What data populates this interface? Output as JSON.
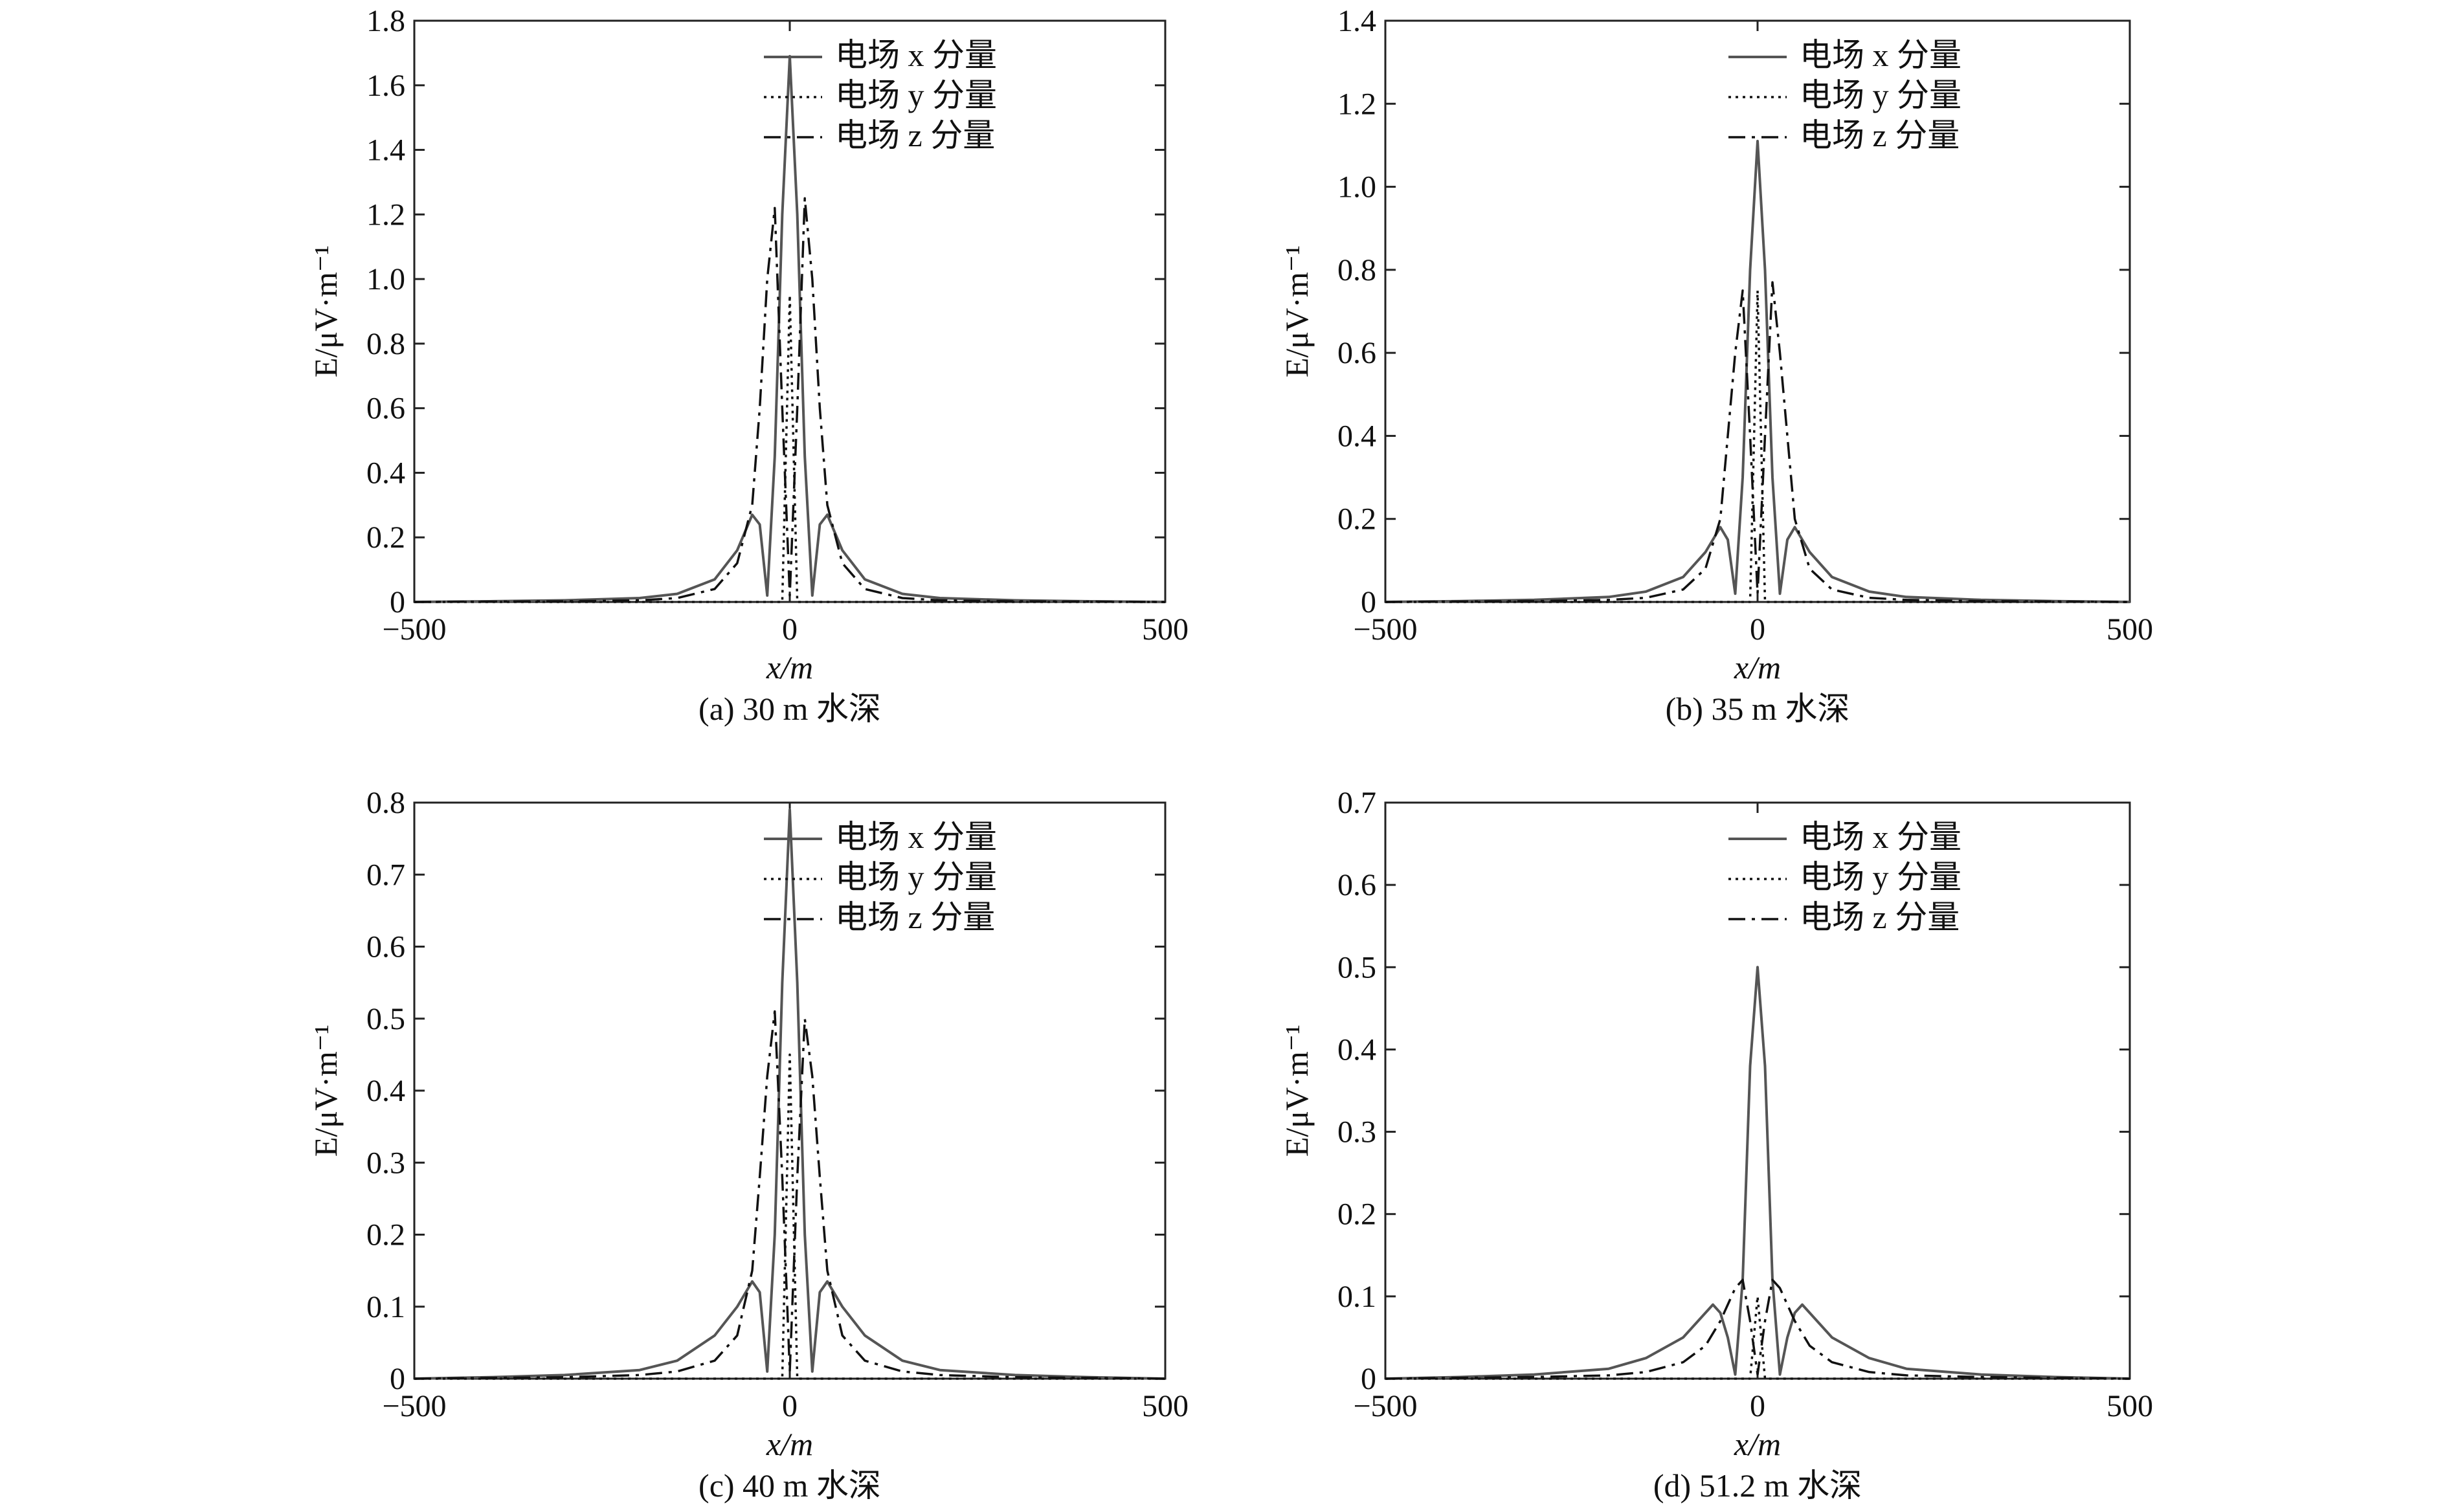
{
  "chart_data": [
    {
      "id": "a",
      "type": "line",
      "caption": "(a) 30 m 水深",
      "xlabel": "x/m",
      "ylabel": "E/μV·m⁻¹",
      "xlim": [
        -500,
        500
      ],
      "ylim": [
        0,
        1.8
      ],
      "xticks": [
        "−500",
        "0",
        "500"
      ],
      "yticks": [
        "0",
        "0.2",
        "0.4",
        "0.6",
        "0.8",
        "1.0",
        "1.2",
        "1.4",
        "1.6",
        "1.8"
      ],
      "legend_position": "top-right",
      "series": [
        {
          "name": "电场 x 分量",
          "style": "solid",
          "color": "#555555",
          "x": [
            -500,
            -400,
            -300,
            -200,
            -150,
            -100,
            -70,
            -50,
            -40,
            -30,
            -20,
            -10,
            0,
            10,
            20,
            30,
            40,
            50,
            70,
            100,
            150,
            200,
            300,
            400,
            500
          ],
          "y": [
            0,
            0.002,
            0.005,
            0.012,
            0.025,
            0.07,
            0.16,
            0.27,
            0.24,
            0.02,
            0.45,
            1.2,
            1.69,
            1.2,
            0.45,
            0.02,
            0.24,
            0.27,
            0.16,
            0.07,
            0.025,
            0.012,
            0.005,
            0.002,
            0
          ]
        },
        {
          "name": "电场 y 分量",
          "style": "dotted",
          "color": "#111111",
          "x": [
            -500,
            -10,
            0,
            10,
            500
          ],
          "y": [
            0,
            0,
            0.95,
            0,
            0
          ]
        },
        {
          "name": "电场 z 分量",
          "style": "dashdot",
          "color": "#111111",
          "x": [
            -500,
            -300,
            -200,
            -150,
            -100,
            -70,
            -50,
            -40,
            -30,
            -20,
            -10,
            0,
            10,
            20,
            30,
            40,
            50,
            70,
            100,
            150,
            200,
            300,
            500
          ],
          "y": [
            0,
            0.002,
            0.005,
            0.012,
            0.04,
            0.12,
            0.3,
            0.6,
            1.0,
            1.22,
            0.6,
            0.02,
            0.6,
            1.25,
            1.0,
            0.6,
            0.3,
            0.12,
            0.04,
            0.012,
            0.005,
            0.002,
            0
          ]
        }
      ]
    },
    {
      "id": "b",
      "type": "line",
      "caption": "(b) 35 m 水深",
      "xlabel": "x/m",
      "ylabel": "E/μV·m⁻¹",
      "xlim": [
        -500,
        500
      ],
      "ylim": [
        0,
        1.4
      ],
      "xticks": [
        "−500",
        "0",
        "500"
      ],
      "yticks": [
        "0",
        "0.2",
        "0.4",
        "0.6",
        "0.8",
        "1.0",
        "1.2",
        "1.4"
      ],
      "legend_position": "top-right",
      "series": [
        {
          "name": "电场 x 分量",
          "style": "solid",
          "color": "#555555",
          "x": [
            -500,
            -400,
            -300,
            -200,
            -150,
            -100,
            -70,
            -50,
            -40,
            -30,
            -20,
            -10,
            0,
            10,
            20,
            30,
            40,
            50,
            70,
            100,
            150,
            200,
            300,
            400,
            500
          ],
          "y": [
            0,
            0.002,
            0.005,
            0.012,
            0.025,
            0.06,
            0.12,
            0.18,
            0.15,
            0.02,
            0.3,
            0.8,
            1.11,
            0.8,
            0.3,
            0.02,
            0.15,
            0.18,
            0.12,
            0.06,
            0.025,
            0.012,
            0.005,
            0.002,
            0
          ]
        },
        {
          "name": "电场 y 分量",
          "style": "dotted",
          "color": "#111111",
          "x": [
            -500,
            -10,
            0,
            10,
            500
          ],
          "y": [
            0,
            0,
            0.75,
            0,
            0
          ]
        },
        {
          "name": "电场 z 分量",
          "style": "dashdot",
          "color": "#111111",
          "x": [
            -500,
            -300,
            -200,
            -150,
            -100,
            -70,
            -50,
            -40,
            -30,
            -20,
            -10,
            0,
            10,
            20,
            30,
            40,
            50,
            70,
            100,
            150,
            200,
            300,
            500
          ],
          "y": [
            0,
            0.002,
            0.005,
            0.01,
            0.03,
            0.08,
            0.2,
            0.4,
            0.6,
            0.75,
            0.4,
            0.02,
            0.4,
            0.77,
            0.6,
            0.4,
            0.2,
            0.08,
            0.03,
            0.01,
            0.005,
            0.002,
            0
          ]
        }
      ]
    },
    {
      "id": "c",
      "type": "line",
      "caption": "(c) 40 m 水深",
      "xlabel": "x/m",
      "ylabel": "E/μV·m⁻¹",
      "xlim": [
        -500,
        500
      ],
      "ylim": [
        0,
        0.8
      ],
      "xticks": [
        "−500",
        "0",
        "500"
      ],
      "yticks": [
        "0",
        "0.1",
        "0.2",
        "0.3",
        "0.4",
        "0.5",
        "0.6",
        "0.7",
        "0.8"
      ],
      "legend_position": "top-right",
      "series": [
        {
          "name": "电场 x 分量",
          "style": "solid",
          "color": "#555555",
          "x": [
            -500,
            -400,
            -300,
            -200,
            -150,
            -100,
            -70,
            -50,
            -40,
            -30,
            -20,
            -10,
            0,
            10,
            20,
            30,
            40,
            50,
            70,
            100,
            150,
            200,
            300,
            400,
            500
          ],
          "y": [
            0,
            0.002,
            0.005,
            0.012,
            0.025,
            0.06,
            0.1,
            0.135,
            0.12,
            0.01,
            0.2,
            0.55,
            0.79,
            0.55,
            0.2,
            0.01,
            0.12,
            0.135,
            0.1,
            0.06,
            0.025,
            0.012,
            0.005,
            0.002,
            0
          ]
        },
        {
          "name": "电场 y 分量",
          "style": "dotted",
          "color": "#111111",
          "x": [
            -500,
            -10,
            0,
            10,
            500
          ],
          "y": [
            0,
            0,
            0.45,
            0,
            0
          ]
        },
        {
          "name": "电场 z 分量",
          "style": "dashdot",
          "color": "#111111",
          "x": [
            -500,
            -300,
            -200,
            -150,
            -100,
            -70,
            -50,
            -40,
            -30,
            -20,
            -10,
            0,
            10,
            20,
            30,
            40,
            50,
            70,
            100,
            150,
            200,
            300,
            500
          ],
          "y": [
            0,
            0.002,
            0.005,
            0.01,
            0.025,
            0.06,
            0.15,
            0.28,
            0.42,
            0.51,
            0.28,
            0.01,
            0.28,
            0.5,
            0.42,
            0.28,
            0.15,
            0.06,
            0.025,
            0.01,
            0.005,
            0.002,
            0
          ]
        }
      ]
    },
    {
      "id": "d",
      "type": "line",
      "caption": "(d) 51.2 m 水深",
      "xlabel": "x/m",
      "ylabel": "E/μV·m⁻¹",
      "xlim": [
        -500,
        500
      ],
      "ylim": [
        0,
        0.7
      ],
      "xticks": [
        "−500",
        "0",
        "500"
      ],
      "yticks": [
        "0",
        "0.1",
        "0.2",
        "0.3",
        "0.4",
        "0.5",
        "0.6",
        "0.7"
      ],
      "legend_position": "top-right",
      "series": [
        {
          "name": "电场 x 分量",
          "style": "solid",
          "color": "#555555",
          "x": [
            -500,
            -400,
            -300,
            -200,
            -150,
            -100,
            -80,
            -60,
            -50,
            -40,
            -30,
            -20,
            -10,
            0,
            10,
            20,
            30,
            40,
            50,
            60,
            80,
            100,
            150,
            200,
            300,
            400,
            500
          ],
          "y": [
            0,
            0.002,
            0.005,
            0.012,
            0.025,
            0.05,
            0.07,
            0.09,
            0.08,
            0.05,
            0.005,
            0.12,
            0.38,
            0.5,
            0.38,
            0.12,
            0.005,
            0.05,
            0.08,
            0.09,
            0.07,
            0.05,
            0.025,
            0.012,
            0.005,
            0.002,
            0
          ]
        },
        {
          "name": "电场 y 分量",
          "style": "dotted",
          "color": "#111111",
          "x": [
            -500,
            -10,
            0,
            10,
            500
          ],
          "y": [
            0,
            0,
            0.1,
            0,
            0
          ]
        },
        {
          "name": "电场 z 分量",
          "style": "dashdot",
          "color": "#111111",
          "x": [
            -500,
            -300,
            -200,
            -150,
            -100,
            -70,
            -50,
            -40,
            -30,
            -20,
            -10,
            0,
            10,
            20,
            30,
            40,
            50,
            70,
            100,
            150,
            200,
            300,
            500
          ],
          "y": [
            0,
            0.002,
            0.004,
            0.008,
            0.02,
            0.04,
            0.07,
            0.09,
            0.11,
            0.12,
            0.07,
            0.005,
            0.07,
            0.12,
            0.11,
            0.09,
            0.07,
            0.04,
            0.02,
            0.008,
            0.004,
            0.002,
            0
          ]
        }
      ]
    }
  ]
}
